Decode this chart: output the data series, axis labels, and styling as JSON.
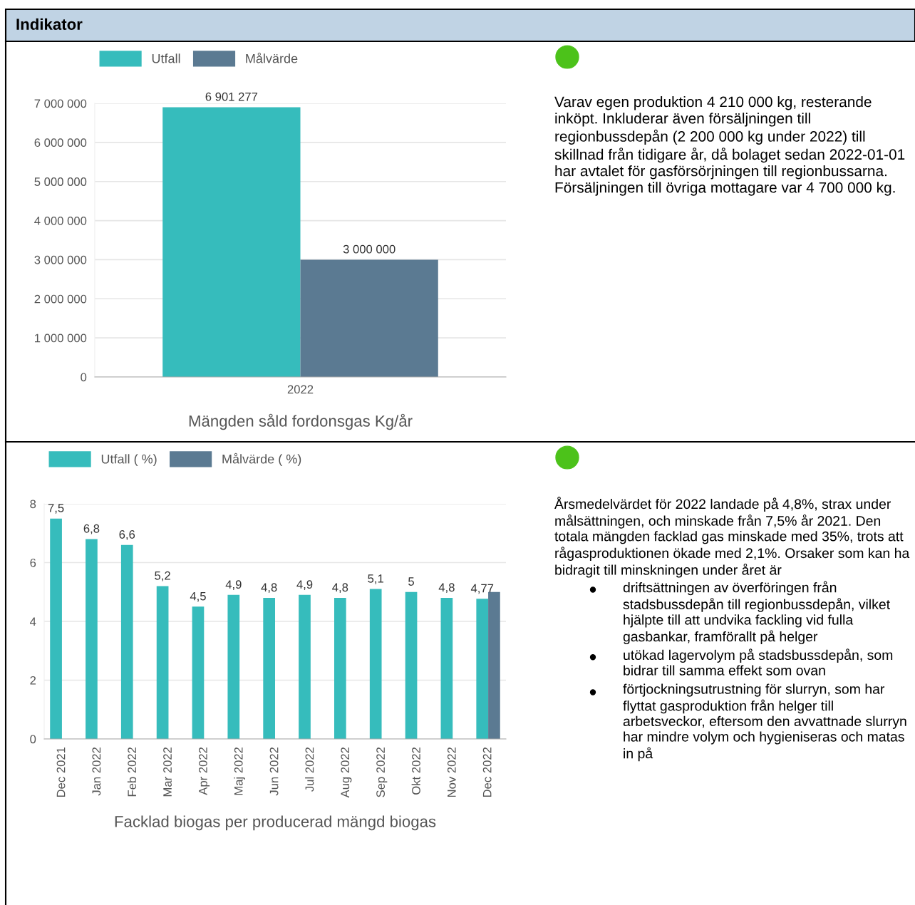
{
  "chart_data": [
    {
      "type": "other",
      "title": "Indikator"
    },
    {
      "type": "bar",
      "xlabel": "Mängden såld fordonsgas Kg/år",
      "categories": [
        "2022"
      ],
      "series": [
        {
          "name": "Utfall",
          "color": "#36bcbc",
          "values": [
            6901277
          ],
          "value_labels": [
            "6 901 277"
          ]
        },
        {
          "name": "Målvärde",
          "color": "#5b7a92",
          "values": [
            3000000
          ],
          "value_labels": [
            "3 000 000"
          ]
        }
      ],
      "ylim": [
        0,
        7000000
      ],
      "yticks": [
        0,
        {
          "value": 1000000,
          "label": "1 000 000"
        },
        {
          "value": 2000000,
          "label": "2 000 000"
        },
        {
          "value": 3000000,
          "label": "3 000 000"
        },
        {
          "value": 4000000,
          "label": "4 000 000"
        },
        {
          "value": 5000000,
          "label": "5 000 000"
        },
        {
          "value": 6000000,
          "label": "6 000 000"
        },
        {
          "value": 7000000,
          "label": "7 000 000"
        }
      ],
      "grid": "y",
      "legend": "top left"
    },
    {
      "type": "other",
      "annotations": [
        "Varav egen produktion 4 210 000 kg, resterande inköpt. Inkluderar även försäljningen till regionbussdepån (2 200 000 kg under 2022) till skillnad från tidigare år, då bolaget sedan 2022-01-01 har avtalet för gasförsörjningen till regionbussarna. Försäljningen till övriga mottagare var 4 700 000 kg."
      ]
    },
    {
      "type": "bar",
      "xlabel": "Facklad biogas per producerad mängd biogas",
      "categories": [
        "Dec 2021",
        "Jan 2022",
        "Feb 2022",
        "Mar 2022",
        "Apr 2022",
        "Maj 2022",
        "Jun 2022",
        "Jul 2022",
        "Aug 2022",
        "Sep 2022",
        "Okt 2022",
        "Nov 2022",
        "Dec 2022"
      ],
      "series": [
        {
          "name": "Utfall ( %)",
          "color": "#36bcbc",
          "values": [
            7.5,
            6.8,
            6.6,
            5.2,
            4.5,
            4.9,
            4.8,
            4.9,
            4.8,
            5.1,
            5,
            4.8,
            4.77
          ],
          "value_labels": [
            "7,5",
            "6,8",
            "6,6",
            "5,2",
            "4,5",
            "4,9",
            "4,8",
            "4,9",
            "4,8",
            "5,1",
            "5",
            "4,8",
            "4,77"
          ]
        },
        {
          "name": "Målvärde ( %)",
          "color": "#5b7a92",
          "values": [
            null,
            null,
            null,
            null,
            null,
            null,
            null,
            null,
            null,
            null,
            null,
            null,
            5
          ]
        }
      ],
      "ylim": [
        0,
        8
      ],
      "yticks": [
        0,
        2,
        4,
        6,
        8
      ],
      "grid": "y",
      "legend": "top left"
    },
    {
      "type": "other",
      "annotations": [
        "Årsmedelvärdet för 2022 landade på 4,8%, strax under målsättningen, och minskade från 7,5% år 2021. Den totala mängden facklad gas minskade med 35%, trots att rågasproduktionen ökade med 2,1%. Orsaker som kan ha bidragit till minskningen under året är",
        "driftsättningen av överföringen från stadsbussdepån till regionbussdepån, vilket hjälpte till att undvika fackling vid fulla gasbankar, framförallt på helger",
        "utökad lagervolym på stadsbussdepån, som bidrar till samma effekt som ovan",
        "förtjockningsutrustning för slurryn, som har flyttat gasproduktion från helger till arbetsveckor, eftersom den avvattnade slurryn har mindre volym och hygieniseras och matas in på"
      ]
    }
  ]
}
